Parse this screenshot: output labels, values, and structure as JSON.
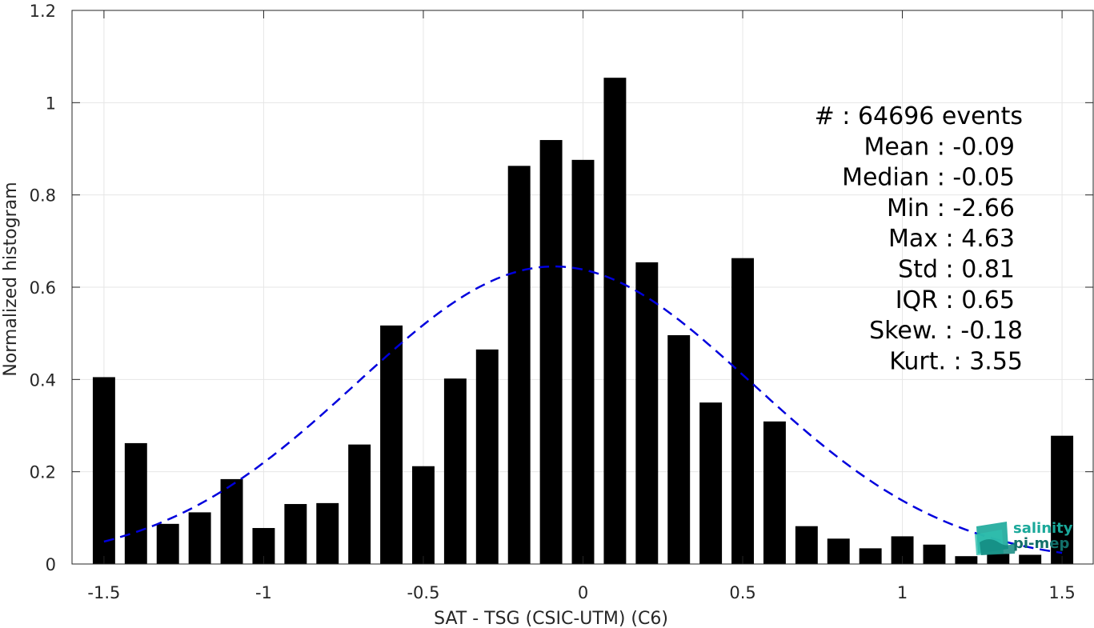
{
  "chart_data": {
    "type": "bar",
    "xlabel": "SAT - TSG (CSIC-UTM) (C6)",
    "ylabel": "Normalized histogram",
    "xlim": [
      -1.6,
      1.6
    ],
    "ylim": [
      0,
      1.2
    ],
    "xticks": [
      -1.5,
      -1,
      -0.5,
      0,
      0.5,
      1,
      1.5
    ],
    "xtick_labels": [
      "-1.5",
      "-1",
      "-0.5",
      "0",
      "0.5",
      "1",
      "1.5"
    ],
    "yticks": [
      0,
      0.2,
      0.4,
      0.6,
      0.8,
      1,
      1.2
    ],
    "ytick_labels": [
      "0",
      "0.2",
      "0.4",
      "0.6",
      "0.8",
      "1",
      "1.2"
    ],
    "grid": true,
    "bin_width": 0.1,
    "bar_color": "#000000",
    "bins": [
      -1.5,
      -1.4,
      -1.3,
      -1.2,
      -1.1,
      -1.0,
      -0.9,
      -0.8,
      -0.7,
      -0.6,
      -0.5,
      -0.4,
      -0.3,
      -0.2,
      -0.1,
      0.0,
      0.1,
      0.2,
      0.3,
      0.4,
      0.5,
      0.6,
      0.7,
      0.8,
      0.9,
      1.0,
      1.1,
      1.2,
      1.3,
      1.4,
      1.5
    ],
    "values": [
      0.405,
      0.262,
      0.087,
      0.112,
      0.184,
      0.078,
      0.13,
      0.132,
      0.259,
      0.517,
      0.212,
      0.402,
      0.465,
      0.863,
      0.919,
      0.876,
      1.054,
      0.654,
      0.496,
      0.35,
      0.663,
      0.309,
      0.082,
      0.055,
      0.034,
      0.06,
      0.042,
      0.017,
      0.022,
      0.02,
      0.278
    ],
    "fit": {
      "type": "gaussian",
      "mean": -0.09,
      "std": 0.62,
      "peak": 0.645,
      "x_range": [
        -1.5,
        1.5
      ],
      "color": "#0000dd",
      "style": "dashed"
    },
    "annotations": [
      {
        "label": "#  : 64696 events"
      },
      {
        "label": "Mean : -0.09"
      },
      {
        "label": "Median : -0.05"
      },
      {
        "label": "Min : -2.66"
      },
      {
        "label": "Max : 4.63"
      },
      {
        "label": "Std : 0.81"
      },
      {
        "label": "IQR : 0.65"
      },
      {
        "label": "Skew. : -0.18"
      },
      {
        "label": "Kurt. : 3.55"
      }
    ]
  },
  "logo": {
    "line1": "salinity",
    "line2": "pi-mep",
    "color1": "#1aa89a",
    "color2": "#12706a"
  }
}
